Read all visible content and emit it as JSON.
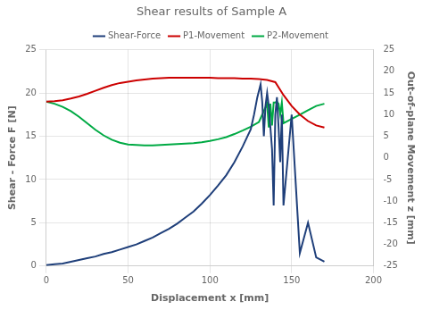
{
  "chart_data": {
    "type": "line",
    "title": "Shear results of Sample A",
    "xlabel": "Displacement x [mm]",
    "ylabel": "Shear - Force F [N]",
    "y2label": "Out-of-plane Movement z [mm]",
    "xlim": [
      0,
      200
    ],
    "xticks": [
      0,
      50,
      100,
      150,
      200
    ],
    "ylim": [
      0,
      25
    ],
    "yticks": [
      0,
      5,
      10,
      15,
      20,
      25
    ],
    "y2lim": [
      -25,
      25
    ],
    "y2ticks": [
      -25,
      -20,
      -15,
      -10,
      -5,
      0,
      5,
      10,
      15,
      20,
      25
    ],
    "grid": true,
    "legend": "top",
    "series": [
      {
        "name": "Shear-Force",
        "color": "#1f3f7a",
        "axis": "y",
        "x": [
          0,
          5,
          10,
          15,
          20,
          25,
          30,
          35,
          40,
          45,
          50,
          55,
          60,
          65,
          70,
          75,
          80,
          85,
          90,
          95,
          100,
          105,
          110,
          115,
          120,
          125,
          127,
          129,
          131,
          132,
          133,
          134,
          135,
          136,
          137,
          138,
          139,
          140,
          141,
          142,
          143,
          144,
          145,
          150,
          155,
          160,
          165,
          170
        ],
        "values": [
          0.1,
          0.2,
          0.3,
          0.5,
          0.7,
          0.9,
          1.1,
          1.4,
          1.6,
          1.9,
          2.2,
          2.5,
          2.9,
          3.3,
          3.8,
          4.3,
          4.9,
          5.6,
          6.3,
          7.2,
          8.2,
          9.3,
          10.5,
          12.0,
          13.8,
          15.8,
          17.5,
          19.5,
          21.0,
          19.0,
          15.0,
          18.5,
          20.0,
          18.5,
          16.0,
          13.5,
          7.0,
          17.5,
          19.5,
          16.0,
          12.0,
          17.5,
          7.0,
          17.5,
          1.5,
          5.0,
          1.0,
          0.5
        ]
      },
      {
        "name": "P1-Movement",
        "color": "#cc0000",
        "axis": "y2",
        "x": [
          0,
          5,
          10,
          15,
          20,
          25,
          30,
          35,
          40,
          45,
          50,
          55,
          60,
          65,
          70,
          75,
          80,
          85,
          90,
          95,
          100,
          105,
          110,
          115,
          120,
          125,
          130,
          135,
          140,
          145,
          150,
          155,
          160,
          165,
          170
        ],
        "values": [
          13.0,
          13.1,
          13.3,
          13.7,
          14.2,
          14.8,
          15.5,
          16.2,
          16.8,
          17.3,
          17.6,
          17.9,
          18.1,
          18.3,
          18.4,
          18.5,
          18.5,
          18.5,
          18.5,
          18.5,
          18.5,
          18.4,
          18.4,
          18.4,
          18.3,
          18.3,
          18.2,
          18.0,
          17.5,
          14.5,
          12.0,
          10.0,
          8.5,
          7.5,
          7.0
        ]
      },
      {
        "name": "P2-Movement",
        "color": "#00aa44",
        "axis": "y2",
        "x": [
          0,
          5,
          10,
          15,
          20,
          25,
          30,
          35,
          40,
          45,
          50,
          55,
          60,
          65,
          70,
          75,
          80,
          85,
          90,
          95,
          100,
          105,
          110,
          115,
          120,
          125,
          130,
          135,
          136,
          137,
          138,
          139,
          140,
          141,
          142,
          143,
          144,
          145,
          150,
          155,
          160,
          165,
          170
        ],
        "values": [
          13.0,
          12.5,
          11.8,
          10.8,
          9.5,
          8.0,
          6.5,
          5.2,
          4.2,
          3.5,
          3.1,
          3.0,
          2.9,
          2.9,
          3.0,
          3.1,
          3.2,
          3.3,
          3.4,
          3.6,
          3.9,
          4.3,
          4.8,
          5.5,
          6.3,
          7.2,
          8.3,
          12.5,
          7.0,
          12.5,
          7.5,
          12.8,
          12.8,
          13.0,
          12.5,
          10.0,
          12.8,
          8.0,
          9.0,
          10.0,
          11.0,
          12.0,
          12.5
        ]
      }
    ]
  }
}
